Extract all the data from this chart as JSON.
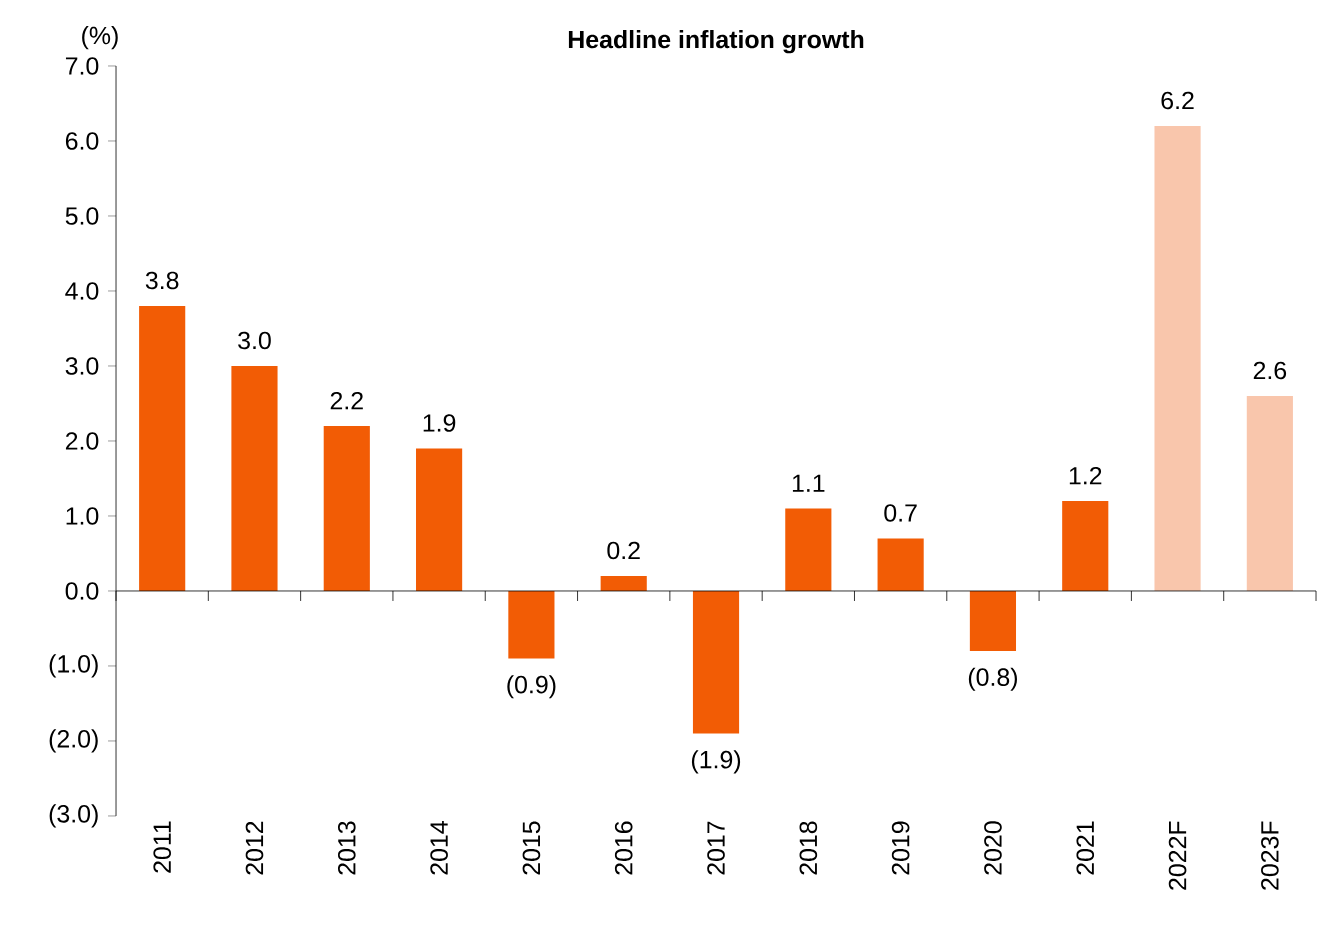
{
  "chart_data": {
    "type": "bar",
    "title": "Headline inflation growth",
    "ylabel": "(%)",
    "categories": [
      "2011",
      "2012",
      "2013",
      "2014",
      "2015",
      "2016",
      "2017",
      "2018",
      "2019",
      "2020",
      "2021",
      "2022F",
      "2023F"
    ],
    "values": [
      3.8,
      3.0,
      2.2,
      1.9,
      -0.9,
      0.2,
      -1.9,
      1.1,
      0.7,
      -0.8,
      1.2,
      6.2,
      2.6
    ],
    "value_labels": [
      "3.8",
      "3.0",
      "2.2",
      "1.9",
      "(0.9)",
      "0.2",
      "(1.9)",
      "1.1",
      "0.7",
      "(0.8)",
      "1.2",
      "6.2",
      "2.6"
    ],
    "colors": [
      "#f25c05",
      "#f25c05",
      "#f25c05",
      "#f25c05",
      "#f25c05",
      "#f25c05",
      "#f25c05",
      "#f25c05",
      "#f25c05",
      "#f25c05",
      "#f25c05",
      "#f9c6ac",
      "#f9c6ac"
    ],
    "ylim": [
      -3,
      7
    ],
    "yticks": [
      {
        "value": -3,
        "label": "(3.0)"
      },
      {
        "value": -2,
        "label": "(2.0)"
      },
      {
        "value": -1,
        "label": "(1.0)"
      },
      {
        "value": 0,
        "label": "0.0"
      },
      {
        "value": 1,
        "label": "1.0"
      },
      {
        "value": 2,
        "label": "2.0"
      },
      {
        "value": 3,
        "label": "3.0"
      },
      {
        "value": 4,
        "label": "4.0"
      },
      {
        "value": 5,
        "label": "5.0"
      },
      {
        "value": 6,
        "label": "6.0"
      },
      {
        "value": 7,
        "label": "7.0"
      }
    ]
  }
}
